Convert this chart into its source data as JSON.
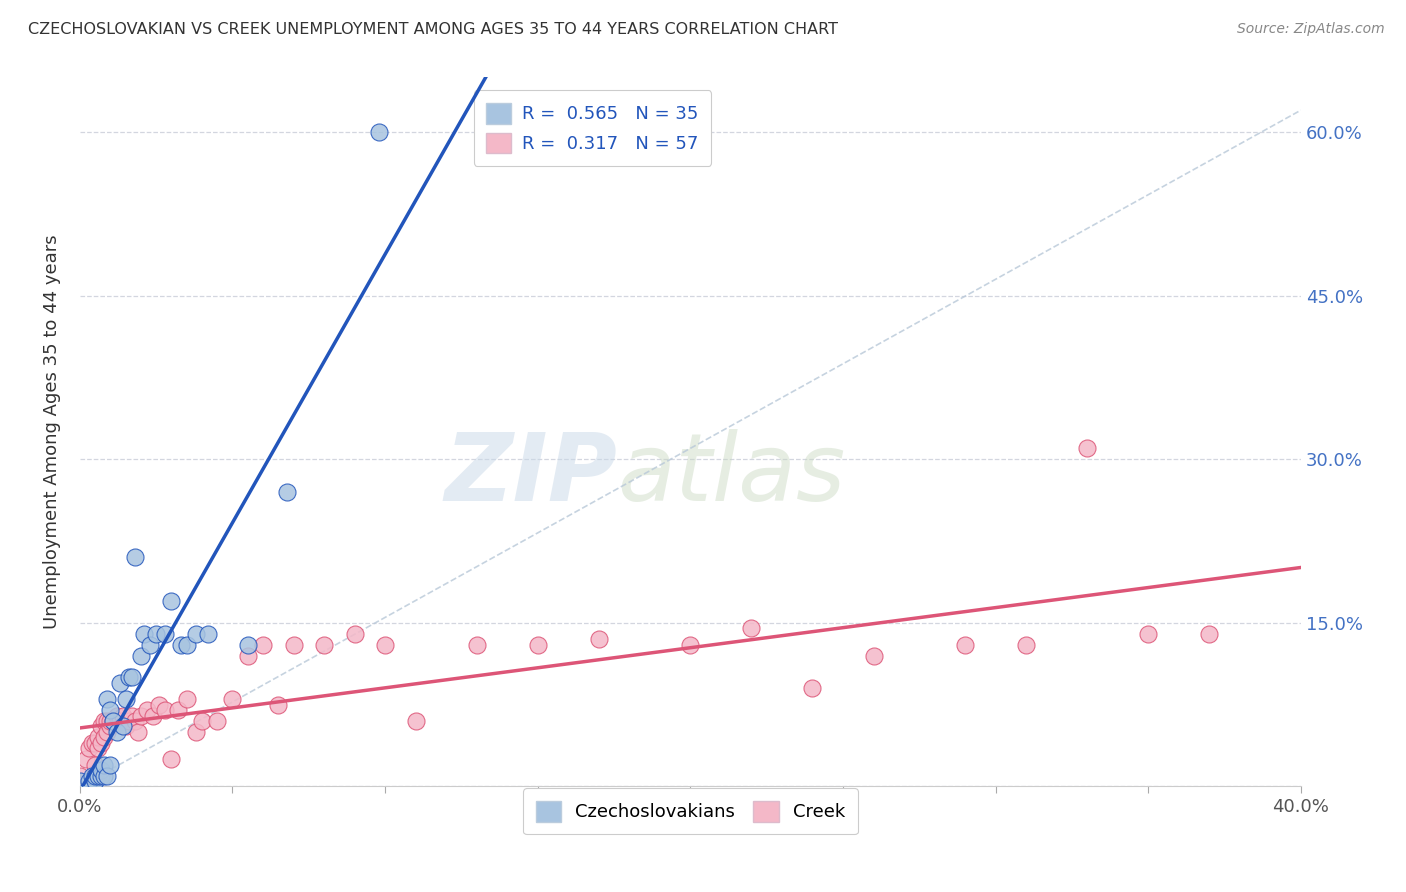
{
  "title": "CZECHOSLOVAKIAN VS CREEK UNEMPLOYMENT AMONG AGES 35 TO 44 YEARS CORRELATION CHART",
  "source": "Source: ZipAtlas.com",
  "ylabel": "Unemployment Among Ages 35 to 44 years",
  "xmin": 0.0,
  "xmax": 0.4,
  "ymin": 0.0,
  "ymax": 0.65,
  "color_czech": "#a8c4e0",
  "color_creek": "#f4b8c8",
  "color_czech_line": "#2255bb",
  "color_creek_line": "#dd5577",
  "color_diag_line": "#b8c8d8",
  "watermark_zip": "ZIP",
  "watermark_atlas": "atlas",
  "legend_R1": "0.565",
  "legend_N1": "35",
  "legend_R2": "0.317",
  "legend_N2": "57",
  "czech_x": [
    0.0,
    0.003,
    0.004,
    0.005,
    0.005,
    0.006,
    0.007,
    0.007,
    0.008,
    0.008,
    0.009,
    0.009,
    0.01,
    0.01,
    0.011,
    0.012,
    0.013,
    0.014,
    0.015,
    0.016,
    0.017,
    0.018,
    0.02,
    0.021,
    0.023,
    0.025,
    0.028,
    0.03,
    0.033,
    0.035,
    0.038,
    0.042,
    0.055,
    0.068,
    0.098
  ],
  "czech_y": [
    0.005,
    0.005,
    0.01,
    0.005,
    0.01,
    0.01,
    0.01,
    0.015,
    0.01,
    0.02,
    0.01,
    0.08,
    0.02,
    0.07,
    0.06,
    0.05,
    0.095,
    0.055,
    0.08,
    0.1,
    0.1,
    0.21,
    0.12,
    0.14,
    0.13,
    0.14,
    0.14,
    0.17,
    0.13,
    0.13,
    0.14,
    0.14,
    0.13,
    0.27,
    0.6
  ],
  "creek_x": [
    0.0,
    0.002,
    0.003,
    0.004,
    0.005,
    0.005,
    0.006,
    0.006,
    0.007,
    0.007,
    0.008,
    0.008,
    0.009,
    0.009,
    0.01,
    0.01,
    0.011,
    0.012,
    0.013,
    0.014,
    0.015,
    0.016,
    0.017,
    0.018,
    0.019,
    0.02,
    0.022,
    0.024,
    0.026,
    0.028,
    0.03,
    0.032,
    0.035,
    0.038,
    0.04,
    0.045,
    0.05,
    0.055,
    0.06,
    0.065,
    0.07,
    0.08,
    0.09,
    0.1,
    0.11,
    0.13,
    0.15,
    0.17,
    0.2,
    0.22,
    0.24,
    0.26,
    0.29,
    0.31,
    0.33,
    0.35,
    0.37
  ],
  "creek_y": [
    0.01,
    0.025,
    0.035,
    0.04,
    0.02,
    0.04,
    0.035,
    0.045,
    0.04,
    0.055,
    0.045,
    0.06,
    0.05,
    0.06,
    0.055,
    0.06,
    0.06,
    0.065,
    0.06,
    0.065,
    0.055,
    0.06,
    0.065,
    0.06,
    0.05,
    0.065,
    0.07,
    0.065,
    0.075,
    0.07,
    0.025,
    0.07,
    0.08,
    0.05,
    0.06,
    0.06,
    0.08,
    0.12,
    0.13,
    0.075,
    0.13,
    0.13,
    0.14,
    0.13,
    0.06,
    0.13,
    0.13,
    0.135,
    0.13,
    0.145,
    0.09,
    0.12,
    0.13,
    0.13,
    0.31,
    0.14,
    0.14
  ]
}
